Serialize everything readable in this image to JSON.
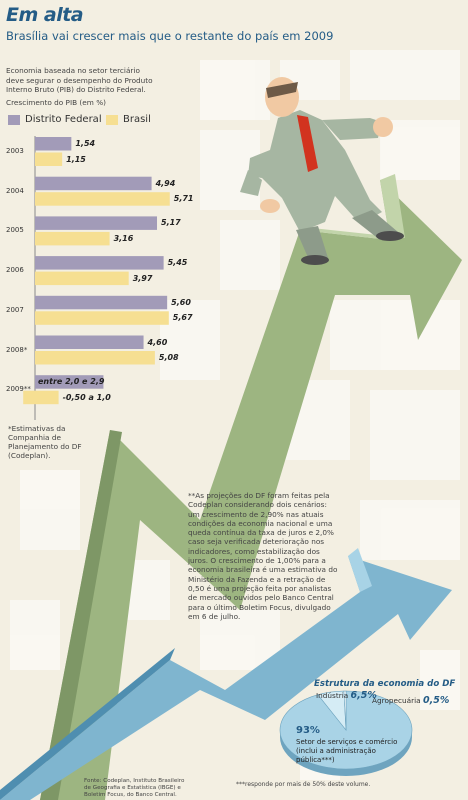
{
  "title": "Em alta",
  "subtitle": "Brasília vai crescer mais que o restante do país em 2009",
  "intro": "Economia baseada no setor terciário deve segurar o desempenho do Produto Interno Bruto (PIB) do Distrito Federal.",
  "ylabel": "Crescimento do PIB (em %)",
  "colors": {
    "df": "#a29bb8",
    "brasil": "#f6df92",
    "title": "#245c86",
    "arrow_green": "#a9c08e",
    "arrow_blue": "#8ec2d9"
  },
  "chart_data": {
    "type": "bar",
    "orientation": "horizontal",
    "categories": [
      "2003",
      "2004",
      "2005",
      "2006",
      "2007",
      "2008*",
      "2009**"
    ],
    "series": [
      {
        "name": "Distrito Federal",
        "values": [
          1.54,
          4.94,
          5.17,
          5.45,
          5.6,
          4.6,
          null
        ],
        "labels": [
          "1,54",
          "4,94",
          "5,17",
          "5,45",
          "5,60",
          "4,60",
          "entre 2,0 e 2,9"
        ]
      },
      {
        "name": "Brasil",
        "values": [
          1.15,
          5.71,
          3.16,
          3.97,
          5.67,
          5.08,
          null
        ],
        "labels": [
          "1,15",
          "5,71",
          "3,16",
          "3,97",
          "5,67",
          "5,08",
          "-0,50 a 1,0"
        ]
      }
    ],
    "ranges_2009": {
      "df": [
        2.0,
        2.9
      ],
      "brasil": [
        -0.5,
        1.0
      ]
    },
    "xlim": [
      0,
      6
    ],
    "legend": "top",
    "grid": false
  },
  "notes": {
    "estimates": "*Estimativas da Companhia de Planejamento do DF (Codeplan).",
    "projection": "**As projeções do DF foram feitas pela Codeplan considerando dois cenários: um crescimento de 2,90% nas atuais condições da economia nacional e uma queda contínua da taxa de juros e 2,0% caso seja verificada deterioração nos indicadores, como estabilização dos juros. O crescimento de 1,00% para a economia brasileira é uma estimativa do Ministério da Fazenda e a retração de 0,50 é uma projeção feita por analistas de mercado ouvidos pelo Banco Central para o último Boletim Focus, divulgado em 6 de julho.",
    "source": "Fonte: Codeplan, Instituto Brasileiro de Geografia e Estatística (IBGE) e Boletim Focus, do Banco Central.",
    "footnote": "***responde por mais de 50% deste volume."
  },
  "estrutura": {
    "title": "Estrutura da economia do DF",
    "industria_label": "Indústria",
    "industria_value": "6,5%",
    "agro_label": "Agropecuária",
    "agro_value": "0,5%",
    "servicos_value": "93%",
    "servicos_label": "Setor de serviços e comércio (inclui a administração pública***)",
    "pie": [
      {
        "name": "Setor de serviços e comércio",
        "value": 93.0
      },
      {
        "name": "Indústria",
        "value": 6.5
      },
      {
        "name": "Agropecuária",
        "value": 0.5
      }
    ]
  }
}
